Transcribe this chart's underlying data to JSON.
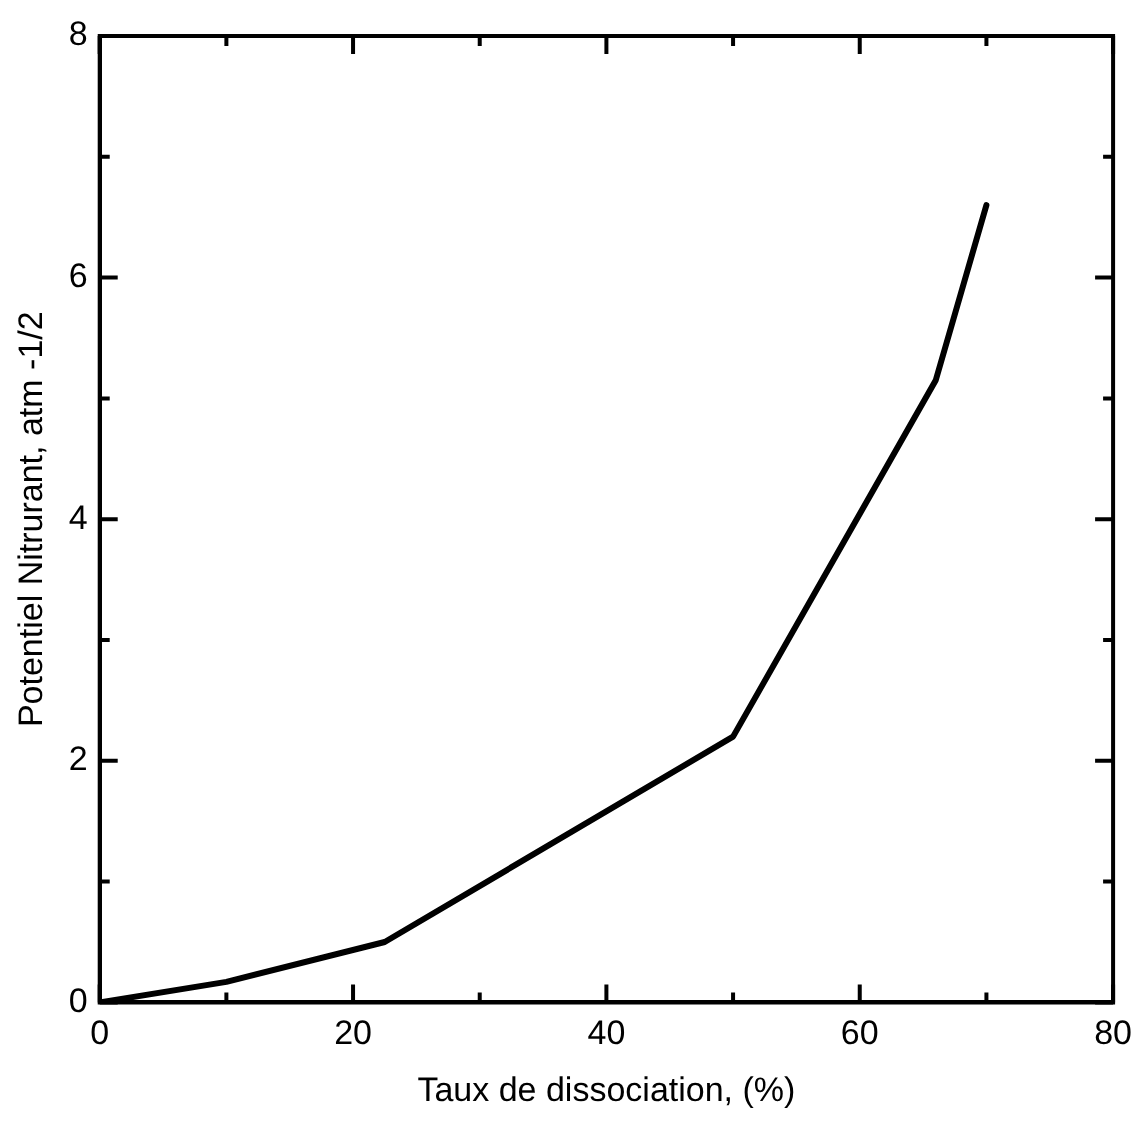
{
  "chart_data": {
    "type": "line",
    "xlabel": "Taux de dissociation, (%)",
    "ylabel": "Potentiel Nitrurant, atm -1/2",
    "x": [
      0,
      10,
      22.5,
      50,
      66,
      70
    ],
    "series": [
      {
        "color": "#000000",
        "values": [
          0,
          0.17,
          0.5,
          2.2,
          5.15,
          6.6
        ]
      }
    ],
    "xlim": [
      0,
      80
    ],
    "xticks": [
      0,
      {
        "value": 10,
        "label": null
      },
      20,
      {
        "value": 30,
        "label": null
      },
      40,
      {
        "value": 50,
        "label": null
      },
      60,
      {
        "value": 70,
        "label": null
      },
      80
    ],
    "ylim": [
      0,
      8
    ],
    "yticks": [
      0,
      {
        "value": 1,
        "label": null
      },
      2,
      {
        "value": 3,
        "label": null
      },
      4,
      {
        "value": 5,
        "label": null
      },
      6,
      {
        "value": 7,
        "label": null
      },
      8
    ],
    "grid": false,
    "legend": false,
    "marker": "none",
    "line_style": "solid"
  }
}
